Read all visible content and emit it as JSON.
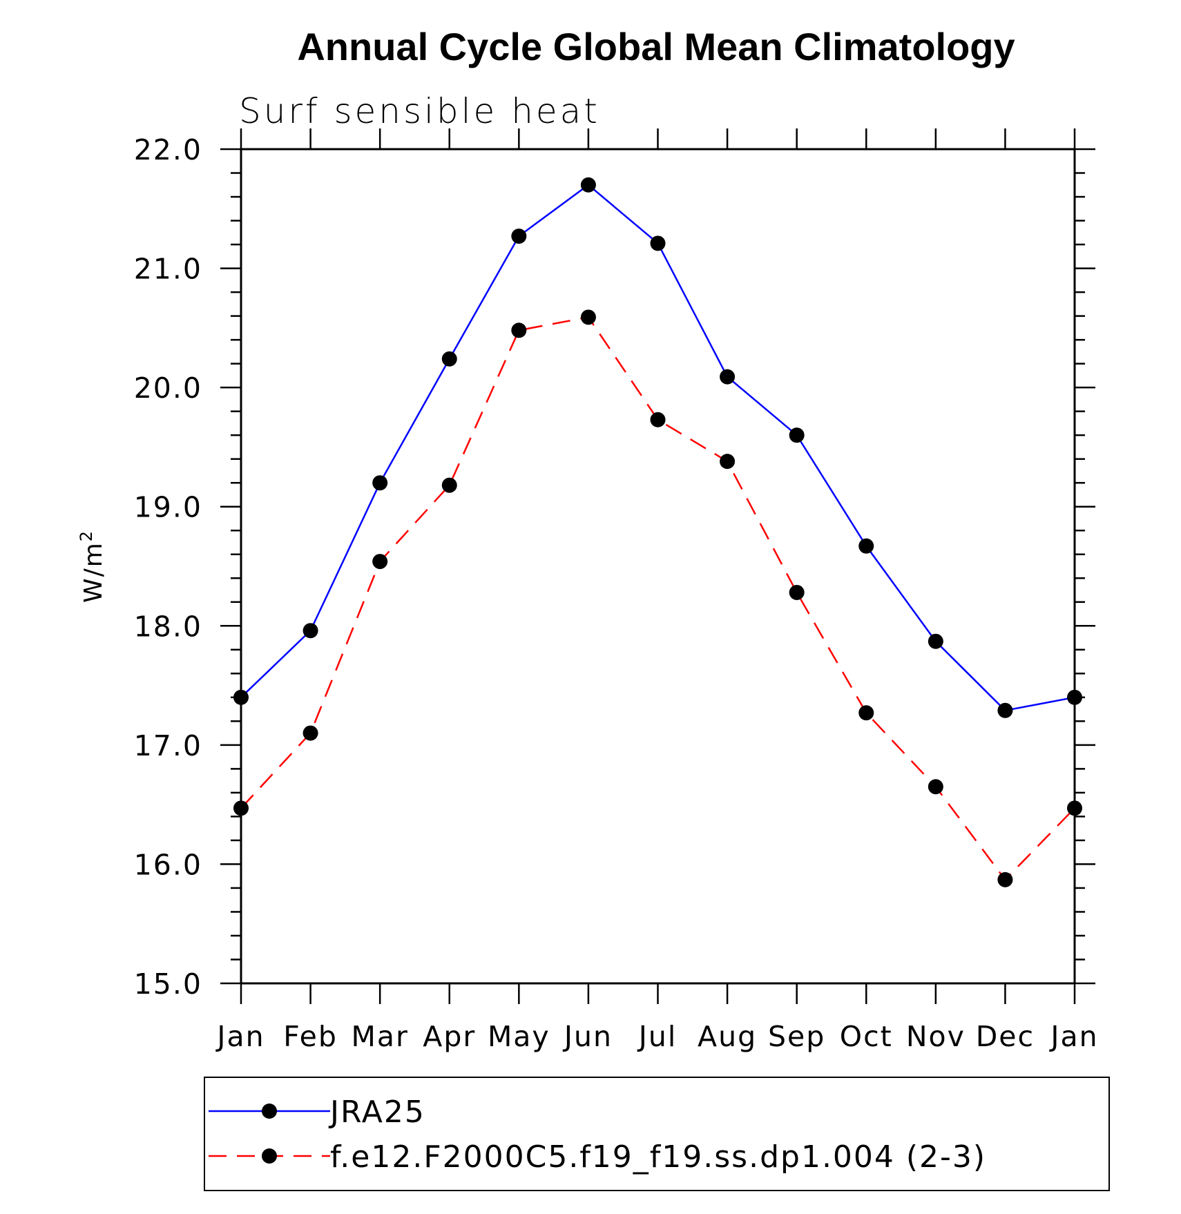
{
  "chart_data": {
    "type": "line",
    "title": "Annual Cycle Global Mean Climatology",
    "subtitle": "Surf sensible heat",
    "ylabel": "W/m",
    "ylabel_superscript": "2",
    "ylim": [
      15.0,
      22.0
    ],
    "yticks": [
      "15.0",
      "16.0",
      "17.0",
      "18.0",
      "19.0",
      "20.0",
      "21.0",
      "22.0"
    ],
    "categories": [
      "Jan",
      "Feb",
      "Mar",
      "Apr",
      "May",
      "Jun",
      "Jul",
      "Aug",
      "Sep",
      "Oct",
      "Nov",
      "Dec",
      "Jan"
    ],
    "grid": false,
    "legend_position": "bottom",
    "series": [
      {
        "name": "JRA25",
        "color": "#0000ff",
        "dash": "solid",
        "marker": "filled-circle",
        "values": [
          17.4,
          17.96,
          19.2,
          20.24,
          21.27,
          21.7,
          21.21,
          20.09,
          19.6,
          18.67,
          17.87,
          17.29,
          17.4
        ]
      },
      {
        "name": "f.e12.F2000C5.f19_f19.ss.dp1.004 (2-3)",
        "color": "#ff0000",
        "dash": "dashed",
        "marker": "filled-circle",
        "values": [
          16.47,
          17.1,
          18.54,
          19.18,
          20.48,
          20.59,
          19.73,
          19.38,
          18.28,
          17.27,
          16.65,
          15.87,
          16.47
        ]
      }
    ]
  }
}
